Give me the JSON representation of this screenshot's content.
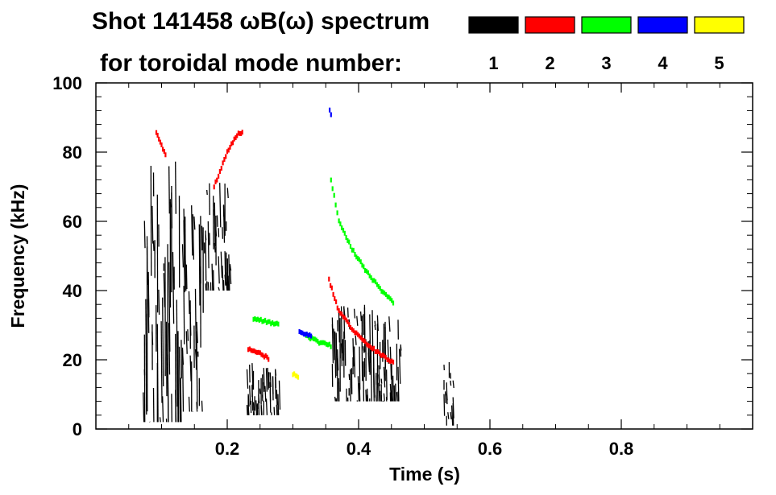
{
  "title_line1": "Shot 141458 ωB(ω) spectrum",
  "title_line2": "for toroidal mode number:",
  "legend": [
    {
      "label": "1",
      "color": "#000000"
    },
    {
      "label": "2",
      "color": "#ff0000"
    },
    {
      "label": "3",
      "color": "#00ff00"
    },
    {
      "label": "4",
      "color": "#0000ff"
    },
    {
      "label": "5",
      "color": "#ffff00"
    }
  ],
  "chart_data": {
    "type": "heatmap",
    "title": "Shot 141458 ωB(ω) spectrum for toroidal mode number:",
    "xlabel": "Time (s)",
    "ylabel": "Frequency (kHz)",
    "xlim": [
      0.0,
      1.0
    ],
    "ylim": [
      0,
      100
    ],
    "x_ticks": [
      0.2,
      0.4,
      0.6,
      0.8
    ],
    "x_tick_labels": [
      "0.2",
      "0.4",
      "0.6",
      "0.8"
    ],
    "y_ticks": [
      0,
      20,
      40,
      60,
      80,
      100
    ],
    "y_tick_labels": [
      "0",
      "20",
      "40",
      "60",
      "80",
      "100"
    ],
    "legend_placement": "top-right",
    "series": [
      {
        "name": "1",
        "color": "#000000",
        "regions": [
          {
            "t": [
              0.072,
              0.13
            ],
            "f": [
              2,
              78
            ]
          },
          {
            "t": [
              0.13,
              0.165
            ],
            "f": [
              5,
              65
            ]
          },
          {
            "t": [
              0.165,
              0.205
            ],
            "f": [
              40,
              72
            ]
          },
          {
            "t": [
              0.23,
              0.28
            ],
            "f": [
              4,
              20
            ]
          },
          {
            "t": [
              0.36,
              0.465
            ],
            "f": [
              8,
              36
            ]
          },
          {
            "t": [
              0.53,
              0.545
            ],
            "f": [
              1,
              20
            ]
          }
        ]
      },
      {
        "name": "2",
        "color": "#ff0000",
        "traces": [
          {
            "t": [
              0.18,
              0.2,
              0.215,
              0.225
            ],
            "f": [
              70,
              80,
              85,
              86
            ]
          },
          {
            "t": [
              0.232,
              0.25,
              0.265
            ],
            "f": [
              23,
              22,
              20
            ]
          },
          {
            "t": [
              0.355,
              0.37,
              0.39,
              0.41,
              0.43,
              0.455
            ],
            "f": [
              43,
              34,
              29,
              25,
              22,
              19
            ]
          },
          {
            "t": [
              0.092,
              0.1,
              0.108
            ],
            "f": [
              86,
              82,
              78
            ]
          }
        ]
      },
      {
        "name": "3",
        "color": "#00ff00",
        "traces": [
          {
            "t": [
              0.358,
              0.37,
              0.39,
              0.41,
              0.435,
              0.455
            ],
            "f": [
              72,
              60,
              52,
              46,
              40,
              36
            ]
          },
          {
            "t": [
              0.24,
              0.26,
              0.28
            ],
            "f": [
              32,
              31,
              30
            ]
          },
          {
            "t": [
              0.32,
              0.34,
              0.36
            ],
            "f": [
              27,
              25,
              24
            ]
          }
        ]
      },
      {
        "name": "4",
        "color": "#0000ff",
        "traces": [
          {
            "t": [
              0.31,
              0.33
            ],
            "f": [
              28,
              27
            ]
          },
          {
            "t": [
              0.356,
              0.36
            ],
            "f": [
              92,
              90
            ]
          }
        ]
      },
      {
        "name": "5",
        "color": "#ffff00",
        "traces": [
          {
            "t": [
              0.3,
              0.31
            ],
            "f": [
              16,
              15
            ]
          }
        ]
      }
    ]
  }
}
